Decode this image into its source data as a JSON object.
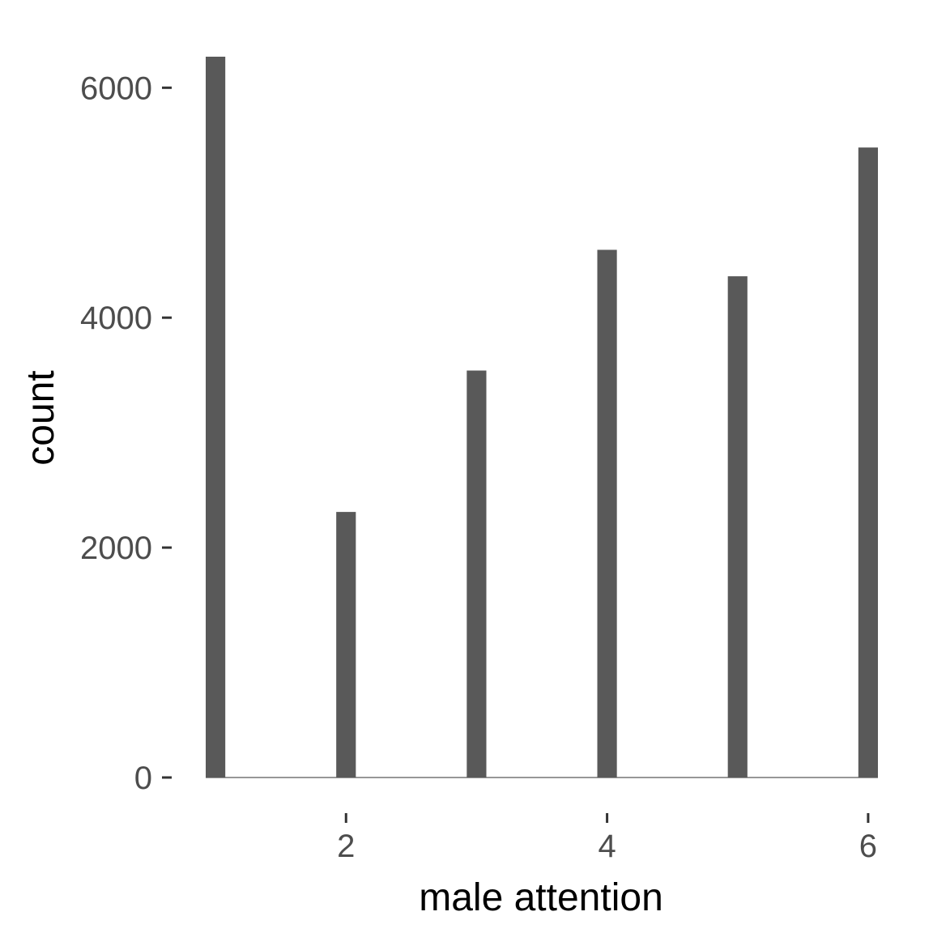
{
  "chart_data": {
    "type": "bar",
    "title": "",
    "xlabel": "male attention",
    "ylabel": "count",
    "bar_color": "#595959",
    "baseline_color": "#595959",
    "background": "#ffffff",
    "grid": false,
    "legend": "none",
    "xlim": [
      0.925,
      6.075
    ],
    "ylim": [
      0,
      6270
    ],
    "x_ticks": [
      2,
      4,
      6
    ],
    "y_ticks": [
      0,
      2000,
      4000,
      6000
    ],
    "bars": [
      {
        "x": 1,
        "count": 6270
      },
      {
        "x": 1.5,
        "count": 0
      },
      {
        "x": 2,
        "count": 2310
      },
      {
        "x": 2.5,
        "count": 0
      },
      {
        "x": 3,
        "count": 3540
      },
      {
        "x": 3.5,
        "count": 0
      },
      {
        "x": 4,
        "count": 4590
      },
      {
        "x": 4.5,
        "count": 0
      },
      {
        "x": 5,
        "count": 4360
      },
      {
        "x": 5.5,
        "count": 0
      },
      {
        "x": 6,
        "count": 5480
      }
    ]
  }
}
